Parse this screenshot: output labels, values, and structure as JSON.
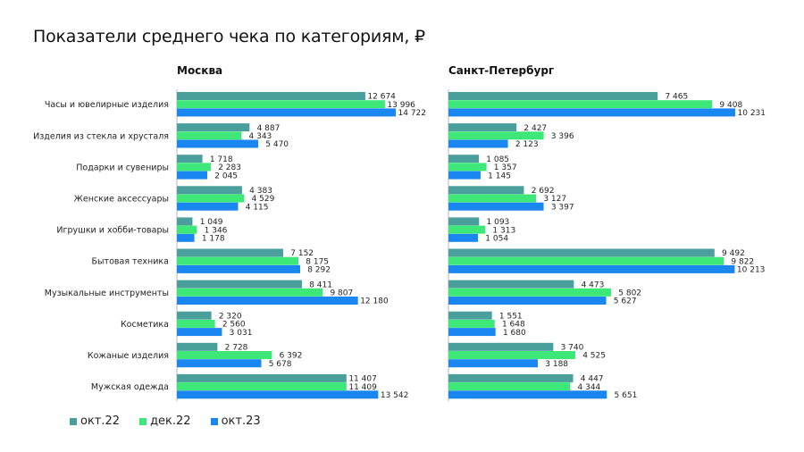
{
  "title": "Показатели среднего чека по категориям, ₽",
  "colors": {
    "okt22": "#4a9e9c",
    "dek22": "#3ee878",
    "okt23": "#1a86f0"
  },
  "chart_data": [
    {
      "type": "bar",
      "orientation": "horizontal",
      "title": "Москва",
      "categories": [
        "Часы и ювелирные изделия",
        "Изделия из стекла и хрусталя",
        "Подарки и сувениры",
        "Женские аксессуары",
        "Игрушки и хобби-товары",
        "Бытовая техника",
        "Музыкальные инструменты",
        "Косметика",
        "Кожаные изделия",
        "Мужская одежда"
      ],
      "series": [
        {
          "name": "окт.22",
          "values": [
            12674,
            4887,
            1718,
            4383,
            1049,
            7152,
            8411,
            2320,
            2728,
            11407
          ],
          "labels": [
            "12 674",
            "4 887",
            "1 718",
            "4 383",
            "1 049",
            "7 152",
            "8 411",
            "2 320",
            "2 728",
            "11 407"
          ]
        },
        {
          "name": "дек.22",
          "values": [
            13996,
            4343,
            2283,
            4529,
            1346,
            8175,
            9807,
            2560,
            6392,
            11409
          ],
          "labels": [
            "13 996",
            "4 343",
            "2 283",
            "4 529",
            "1 346",
            "8 175",
            "9 807",
            "2 560",
            "6 392",
            "11 409"
          ]
        },
        {
          "name": "окт.23",
          "values": [
            14722,
            5470,
            2045,
            4115,
            1178,
            8292,
            12180,
            3031,
            5678,
            13542
          ],
          "labels": [
            "14 722",
            "5 470",
            "2 045",
            "4 115",
            "1 178",
            "8 292",
            "12 180",
            "3 031",
            "5 678",
            "13 542"
          ]
        }
      ]
    },
    {
      "type": "bar",
      "orientation": "horizontal",
      "title": "Санкт-Петербург",
      "categories": [
        "Часы и ювелирные изделия",
        "Изделия из стекла и хрусталя",
        "Подарки и сувениры",
        "Женские аксессуары",
        "Игрушки и хобби-товары",
        "Бытовая техника",
        "Музыкальные инструменты",
        "Косметика",
        "Кожаные изделия",
        "Мужская одежда"
      ],
      "series": [
        {
          "name": "окт.22",
          "values": [
            7465,
            2427,
            1085,
            2692,
            1093,
            9492,
            4473,
            1551,
            3740,
            4447
          ],
          "labels": [
            "7 465",
            "2 427",
            "1 085",
            "2 692",
            "1 093",
            "9 492",
            "4 473",
            "1 551",
            "3 740",
            "4 447"
          ]
        },
        {
          "name": "дек.22",
          "values": [
            9408,
            3396,
            1357,
            3127,
            1313,
            9822,
            5802,
            1648,
            4525,
            4344
          ],
          "labels": [
            "9 408",
            "3 396",
            "1 357",
            "3 127",
            "1 313",
            "9 822",
            "5 802",
            "1 648",
            "4 525",
            "4 344"
          ]
        },
        {
          "name": "окт.23",
          "values": [
            10231,
            2123,
            1145,
            3397,
            1054,
            10213,
            5627,
            1680,
            3188,
            5651
          ],
          "labels": [
            "10 231",
            "2 123",
            "1 145",
            "3 397",
            "1 054",
            "10 213",
            "5 627",
            "1 680",
            "3 188",
            "5 651"
          ]
        }
      ]
    }
  ],
  "legend": [
    {
      "label": "окт.22",
      "color": "#4a9e9c"
    },
    {
      "label": "дек.22",
      "color": "#3ee878"
    },
    {
      "label": "окт.23",
      "color": "#1a86f0"
    }
  ]
}
